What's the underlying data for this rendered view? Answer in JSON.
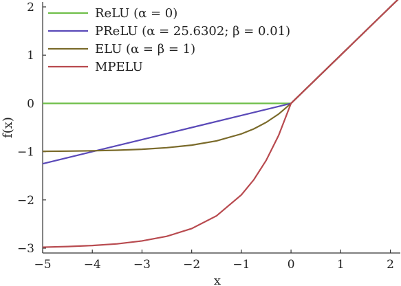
{
  "chart_data": {
    "type": "line",
    "title": "",
    "xlabel": "x",
    "ylabel": "f(x)",
    "xlim": [
      -5,
      2.2
    ],
    "ylim": [
      -3.1,
      2.1
    ],
    "xticks": [
      -5,
      -4,
      -3,
      -2,
      -1,
      0,
      1,
      2
    ],
    "yticks": [
      -3,
      -2,
      -1,
      0,
      1,
      2
    ],
    "xtick_labels": [
      "−5",
      "−4",
      "−3",
      "−2",
      "−1",
      "0",
      "1",
      "2"
    ],
    "ytick_labels": [
      "−3",
      "−2",
      "−1",
      "0",
      "1",
      "2"
    ],
    "grid": false,
    "legend_position": "top-left",
    "series": [
      {
        "name": "ReLU (α = 0)",
        "color": "#6fbf4a",
        "x": [
          -5,
          -4,
          -3,
          -2,
          -1,
          0,
          1,
          2,
          2.2
        ],
        "y": [
          0,
          0,
          0,
          0,
          0,
          0,
          1,
          2,
          2.2
        ]
      },
      {
        "name": "PReLU (α = 25.6302; β = 0.01)",
        "color": "#5a49b8",
        "x": [
          -5,
          -4,
          -3,
          -2,
          -1,
          0,
          1,
          2,
          2.2
        ],
        "y": [
          -1.25,
          -1.0,
          -0.75,
          -0.5,
          -0.25,
          0,
          1,
          2,
          2.2
        ]
      },
      {
        "name": "ELU (α = β = 1)",
        "color": "#7a6a2a",
        "x": [
          -5,
          -4.5,
          -4,
          -3.5,
          -3,
          -2.5,
          -2,
          -1.5,
          -1,
          -0.75,
          -0.5,
          -0.25,
          0,
          1,
          2,
          2.2
        ],
        "y": [
          -0.993,
          -0.989,
          -0.982,
          -0.97,
          -0.95,
          -0.918,
          -0.865,
          -0.777,
          -0.632,
          -0.528,
          -0.393,
          -0.221,
          0,
          1,
          2,
          2.2
        ]
      },
      {
        "name": "MPELU",
        "color": "#b84a4f",
        "x": [
          -5,
          -4.5,
          -4,
          -3.5,
          -3,
          -2.5,
          -2,
          -1.5,
          -1,
          -0.75,
          -0.5,
          -0.25,
          0,
          1,
          2,
          2.2
        ],
        "y": [
          -2.98,
          -2.966,
          -2.945,
          -2.91,
          -2.85,
          -2.754,
          -2.594,
          -2.33,
          -1.896,
          -1.583,
          -1.18,
          -0.664,
          0,
          1,
          2,
          2.2
        ]
      }
    ]
  }
}
